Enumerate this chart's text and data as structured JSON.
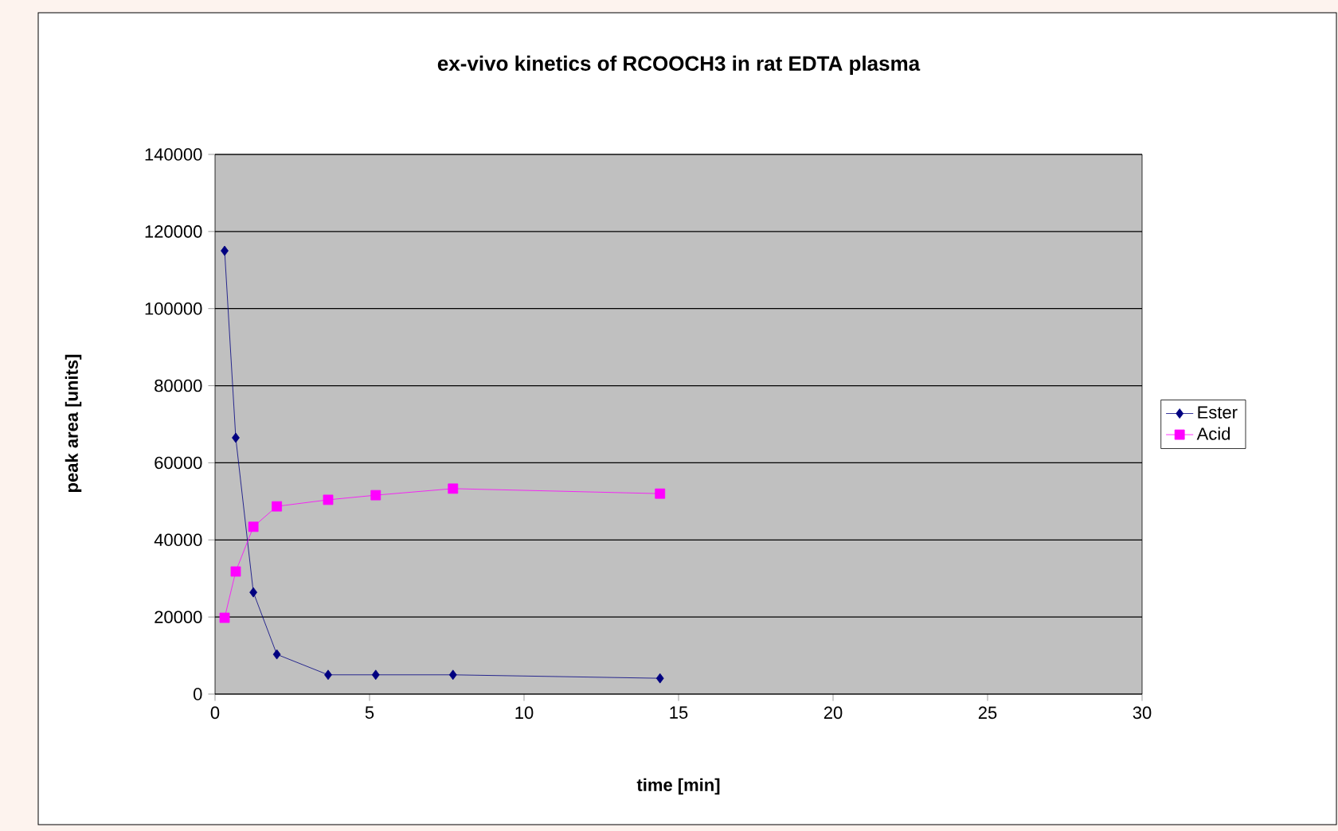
{
  "chart_data": {
    "type": "line",
    "title": "ex-vivo kinetics of RCOOCH3 in rat EDTA plasma",
    "xlabel": "time [min]",
    "ylabel": "peak area  [units]",
    "xlim": [
      0,
      30
    ],
    "xticks": [
      0,
      5,
      10,
      15,
      20,
      25,
      30
    ],
    "ylim": [
      0,
      140000
    ],
    "yticks": [
      0,
      20000,
      40000,
      60000,
      80000,
      100000,
      120000,
      140000
    ],
    "grid": "y",
    "legend": "right",
    "line_style": "solid",
    "series": [
      {
        "name": "Ester",
        "color": "#000080",
        "marker": "diamond",
        "x": [
          0.31,
          0.67,
          1.24,
          2.0,
          3.66,
          5.2,
          7.7,
          14.4
        ],
        "values": [
          115000,
          66500,
          26400,
          10300,
          5000,
          5000,
          5000,
          4100
        ]
      },
      {
        "name": "Acid",
        "color": "#ff00ff",
        "marker": "square",
        "x": [
          0.31,
          0.67,
          1.24,
          2.0,
          3.66,
          5.2,
          7.7,
          14.4
        ],
        "values": [
          19800,
          31800,
          43400,
          48700,
          50400,
          51600,
          53300,
          52000
        ]
      }
    ]
  }
}
